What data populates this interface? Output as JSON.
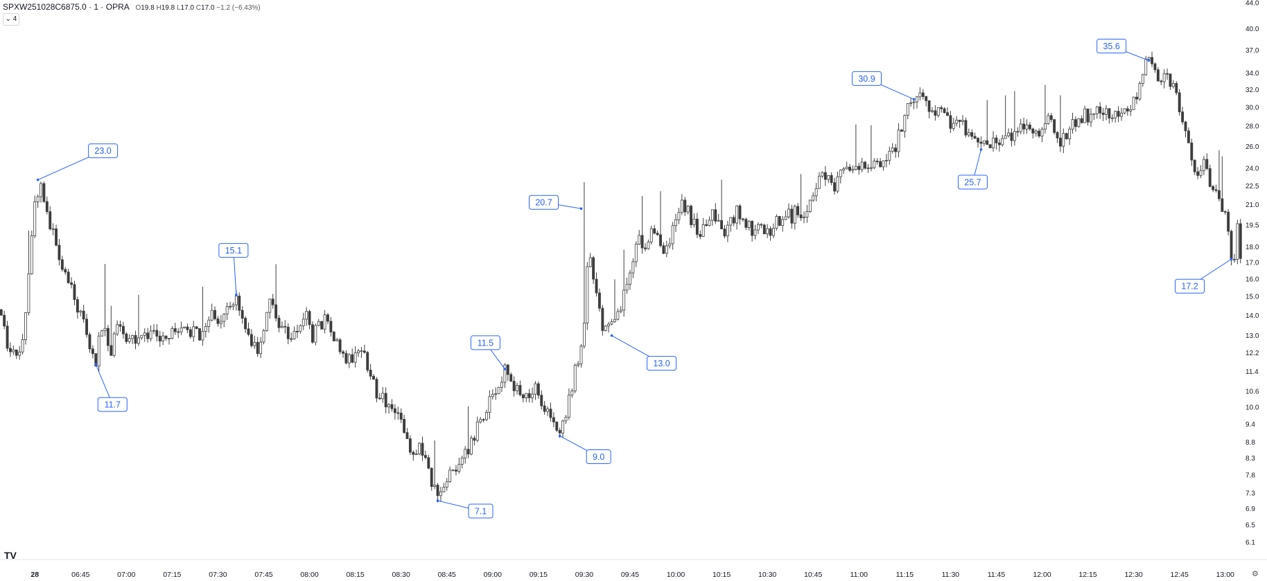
{
  "header": {
    "symbol": "SPXW251028C6875.0 · 1 · OPRA",
    "open_label": "O",
    "open": "19.8",
    "high_label": "H",
    "high": "19.8",
    "low_label": "L",
    "low": "17.0",
    "close_label": "C",
    "close": "17.0",
    "change": "−1.2 (−6.43%)"
  },
  "indicator_toggle": "4",
  "logo": "TV",
  "chart_data": {
    "type": "candlestick",
    "title": "",
    "y_scale": "log",
    "ylim": [
      5.9,
      44.0
    ],
    "y_ticks": [
      "44.0",
      "40.0",
      "37.0",
      "34.0",
      "32.0",
      "30.0",
      "28.0",
      "26.0",
      "24.0",
      "22.5",
      "21.0",
      "19.5",
      "18.0",
      "17.0",
      "16.0",
      "15.0",
      "14.0",
      "13.0",
      "12.2",
      "11.4",
      "10.6",
      "10.0",
      "9.4",
      "8.8",
      "8.3",
      "7.8",
      "7.3",
      "6.9",
      "6.5",
      "6.1"
    ],
    "x_ticks": [
      "28",
      "06:45",
      "07:00",
      "07:15",
      "07:30",
      "07:45",
      "08:00",
      "08:15",
      "08:30",
      "08:45",
      "09:00",
      "09:15",
      "09:30",
      "09:45",
      "10:00",
      "10:15",
      "10:30",
      "10:45",
      "11:00",
      "11:15",
      "11:30",
      "11:45",
      "12:00",
      "12:15",
      "12:30",
      "12:45",
      "13:00"
    ],
    "x_tick_minutes": [
      390,
      405,
      420,
      435,
      450,
      465,
      480,
      495,
      510,
      525,
      540,
      555,
      570,
      585,
      600,
      615,
      630,
      645,
      660,
      675,
      690,
      705,
      720,
      735,
      750,
      765,
      780
    ],
    "xlim_minutes": [
      378.6,
      784.6
    ],
    "interval": "1 minute",
    "price_path": [
      [
        379,
        14.3
      ],
      [
        381,
        12.5
      ],
      [
        384,
        12.0
      ],
      [
        386,
        12.6
      ],
      [
        390,
        21.5
      ],
      [
        392,
        22.5
      ],
      [
        394,
        20.0
      ],
      [
        396,
        19.0
      ],
      [
        398,
        17.0
      ],
      [
        402,
        15.5
      ],
      [
        405,
        14.0
      ],
      [
        407,
        13.0
      ],
      [
        409,
        12.0
      ],
      [
        410,
        11.7
      ],
      [
        411,
        12.8
      ],
      [
        412,
        13.5
      ],
      [
        415,
        12.3
      ],
      [
        417,
        13.3
      ],
      [
        420,
        13.0
      ],
      [
        424,
        12.8
      ],
      [
        428,
        13.0
      ],
      [
        432,
        12.8
      ],
      [
        436,
        13.1
      ],
      [
        440,
        13.3
      ],
      [
        444,
        13.0
      ],
      [
        446,
        13.5
      ],
      [
        448,
        14.0
      ],
      [
        450,
        13.5
      ],
      [
        452,
        14.3
      ],
      [
        454,
        14.5
      ],
      [
        456,
        15.1
      ],
      [
        457,
        14.4
      ],
      [
        459,
        13.5
      ],
      [
        461,
        12.8
      ],
      [
        463,
        12.4
      ],
      [
        465,
        13.5
      ],
      [
        467,
        14.5
      ],
      [
        469,
        14.0
      ],
      [
        471,
        13.4
      ],
      [
        473,
        12.9
      ],
      [
        475,
        13.2
      ],
      [
        477,
        13.6
      ],
      [
        479,
        13.9
      ],
      [
        481,
        13.0
      ],
      [
        483,
        13.4
      ],
      [
        486,
        13.9
      ],
      [
        488,
        13.0
      ],
      [
        490,
        12.4
      ],
      [
        492,
        11.9
      ],
      [
        494,
        12.0
      ],
      [
        496,
        12.5
      ],
      [
        498,
        12.1
      ],
      [
        500,
        11.3
      ],
      [
        502,
        10.5
      ],
      [
        504,
        10.3
      ],
      [
        506,
        10.0
      ],
      [
        508,
        9.8
      ],
      [
        510,
        9.4
      ],
      [
        512,
        8.8
      ],
      [
        514,
        8.3
      ],
      [
        516,
        8.6
      ],
      [
        518,
        8.2
      ],
      [
        520,
        7.6
      ],
      [
        522,
        7.1
      ],
      [
        524,
        7.5
      ],
      [
        526,
        7.8
      ],
      [
        528,
        8.1
      ],
      [
        530,
        8.4
      ],
      [
        532,
        8.6
      ],
      [
        534,
        8.9
      ],
      [
        536,
        9.6
      ],
      [
        538,
        10.0
      ],
      [
        540,
        10.4
      ],
      [
        542,
        10.9
      ],
      [
        544,
        11.5
      ],
      [
        546,
        11.0
      ],
      [
        548,
        10.6
      ],
      [
        550,
        10.3
      ],
      [
        552,
        10.5
      ],
      [
        554,
        10.8
      ],
      [
        556,
        10.2
      ],
      [
        558,
        9.7
      ],
      [
        560,
        9.3
      ],
      [
        562,
        9.0
      ],
      [
        564,
        9.8
      ],
      [
        566,
        10.8
      ],
      [
        568,
        12.0
      ],
      [
        570,
        13.5
      ],
      [
        571,
        16.5
      ],
      [
        572,
        17.0
      ],
      [
        574,
        15.0
      ],
      [
        576,
        13.5
      ],
      [
        578,
        13.3
      ],
      [
        580,
        13.8
      ],
      [
        582,
        14.6
      ],
      [
        584,
        15.5
      ],
      [
        586,
        17.0
      ],
      [
        588,
        18.5
      ],
      [
        590,
        18.0
      ],
      [
        592,
        19.2
      ],
      [
        594,
        18.7
      ],
      [
        596,
        18.0
      ],
      [
        598,
        18.5
      ],
      [
        600,
        19.5
      ],
      [
        602,
        21.0
      ],
      [
        604,
        20.4
      ],
      [
        606,
        19.5
      ],
      [
        608,
        19.0
      ],
      [
        610,
        19.6
      ],
      [
        612,
        20.3
      ],
      [
        614,
        19.8
      ],
      [
        616,
        19.2
      ],
      [
        618,
        19.7
      ],
      [
        620,
        20.4
      ],
      [
        622,
        19.9
      ],
      [
        624,
        19.4
      ],
      [
        626,
        19.0
      ],
      [
        628,
        19.5
      ],
      [
        630,
        18.9
      ],
      [
        632,
        19.4
      ],
      [
        634,
        19.9
      ],
      [
        636,
        20.4
      ],
      [
        638,
        20.1
      ],
      [
        640,
        20.7
      ],
      [
        642,
        20.0
      ],
      [
        644,
        21.0
      ],
      [
        646,
        22.5
      ],
      [
        648,
        23.5
      ],
      [
        650,
        23.0
      ],
      [
        652,
        22.6
      ],
      [
        654,
        23.4
      ],
      [
        656,
        24.0
      ],
      [
        658,
        23.6
      ],
      [
        660,
        24.3
      ],
      [
        662,
        24.0
      ],
      [
        664,
        24.5
      ],
      [
        666,
        24.2
      ],
      [
        668,
        24.6
      ],
      [
        670,
        25.0
      ],
      [
        672,
        26.0
      ],
      [
        674,
        28.0
      ],
      [
        676,
        30.0
      ],
      [
        678,
        30.9
      ],
      [
        680,
        31.0
      ],
      [
        682,
        30.5
      ],
      [
        684,
        30.0
      ],
      [
        686,
        29.5
      ],
      [
        688,
        29.0
      ],
      [
        690,
        28.4
      ],
      [
        692,
        28.9
      ],
      [
        694,
        28.0
      ],
      [
        696,
        27.0
      ],
      [
        698,
        26.3
      ],
      [
        700,
        25.7
      ],
      [
        702,
        26.2
      ],
      [
        704,
        26.6
      ],
      [
        706,
        26.3
      ],
      [
        708,
        26.9
      ],
      [
        710,
        26.6
      ],
      [
        712,
        27.3
      ],
      [
        714,
        28.0
      ],
      [
        716,
        27.6
      ],
      [
        718,
        27.1
      ],
      [
        720,
        28.0
      ],
      [
        722,
        28.7
      ],
      [
        724,
        27.3
      ],
      [
        726,
        26.6
      ],
      [
        728,
        27.3
      ],
      [
        730,
        28.1
      ],
      [
        732,
        28.7
      ],
      [
        734,
        29.3
      ],
      [
        736,
        28.8
      ],
      [
        738,
        29.4
      ],
      [
        740,
        29.0
      ],
      [
        742,
        29.5
      ],
      [
        744,
        29.0
      ],
      [
        746,
        29.6
      ],
      [
        748,
        30.1
      ],
      [
        750,
        30.4
      ],
      [
        752,
        32.5
      ],
      [
        754,
        35.0
      ],
      [
        755,
        35.6
      ],
      [
        757,
        34.0
      ],
      [
        759,
        33.0
      ],
      [
        761,
        33.5
      ],
      [
        763,
        32.5
      ],
      [
        765,
        30.0
      ],
      [
        767,
        27.0
      ],
      [
        769,
        25.0
      ],
      [
        771,
        23.5
      ],
      [
        773,
        24.5
      ],
      [
        775,
        23.0
      ],
      [
        777,
        22.3
      ],
      [
        779,
        21.0
      ],
      [
        781,
        19.5
      ],
      [
        782,
        17.5
      ],
      [
        783,
        17.2
      ],
      [
        784,
        19.8
      ],
      [
        785,
        17.0
      ]
    ],
    "annotations": [
      {
        "label": "23.0",
        "minute": 391,
        "price": 23.0,
        "box_dx": 94,
        "box_dy": -42
      },
      {
        "label": "11.7",
        "minute": 410,
        "price": 11.7,
        "box_dx": 24,
        "box_dy": 58
      },
      {
        "label": "15.1",
        "minute": 456,
        "price": 15.1,
        "box_dx": -4,
        "box_dy": -64
      },
      {
        "label": "7.1",
        "minute": 522,
        "price": 7.1,
        "box_dx": 62,
        "box_dy": 15
      },
      {
        "label": "11.5",
        "minute": 544,
        "price": 11.5,
        "box_dx": -28,
        "box_dy": -38
      },
      {
        "label": "9.0",
        "minute": 562,
        "price": 9.0,
        "box_dx": 56,
        "box_dy": 30
      },
      {
        "label": "20.7",
        "minute": 569,
        "price": 20.7,
        "box_dx": -54,
        "box_dy": -9
      },
      {
        "label": "13.0",
        "minute": 579,
        "price": 13.0,
        "box_dx": 72,
        "box_dy": 40
      },
      {
        "label": "30.9",
        "minute": 678,
        "price": 30.9,
        "box_dx": -68,
        "box_dy": -30
      },
      {
        "label": "25.7",
        "minute": 700,
        "price": 25.7,
        "box_dx": -12,
        "box_dy": 47
      },
      {
        "label": "35.6",
        "minute": 755,
        "price": 35.6,
        "box_dx": -54,
        "box_dy": -21
      },
      {
        "label": "17.2",
        "minute": 782,
        "price": 17.2,
        "box_dx": -60,
        "box_dy": 39
      }
    ],
    "colors": {
      "up_fill": "#ffffff",
      "down_fill": "#3d3d3d",
      "outline": "#3d3d3d",
      "annotation": "#2962ff",
      "axis_text": "#131722"
    },
    "grid": false
  }
}
